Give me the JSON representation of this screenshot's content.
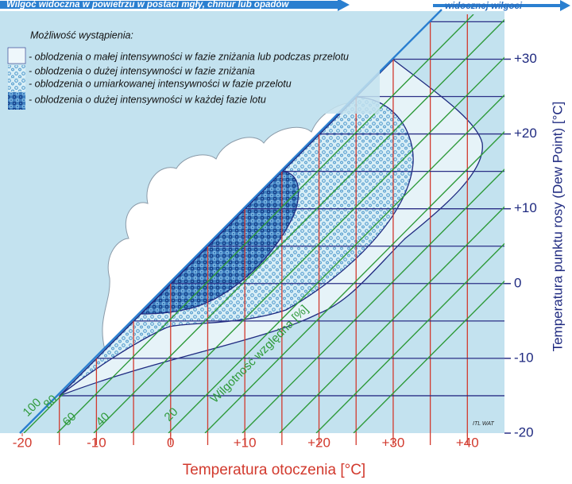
{
  "banner": {
    "left": "Wilgoć widoczna w powietrzu w postaci mgły, chmur lub opadów",
    "right": "widocznej wilgoci"
  },
  "chart_data": {
    "type": "icing-diagram",
    "legend_title": "Możliwość wystąpienia:",
    "legend": [
      "- oblodzenia o małej intensywności w fazie zniżania lub podczas przelotu",
      "- oblodzenia o dużej intensywności w fazie zniżania",
      "- oblodzenia o umiarkowanej intensywności w fazie przelotu",
      "- oblodzenia o dużej intensywności w każdej fazie lotu"
    ],
    "x_label": "Temperatura otoczenia [°C]",
    "y_label": "Temperatura punktu rosy (Dew Point) [°C]",
    "rh_label": "Wilgotność względna [%]",
    "rh_lines": [
      100,
      80,
      60,
      40,
      20
    ],
    "credit": "ITL WAT",
    "xlim": [
      -23,
      45
    ],
    "ylim": [
      -20,
      36
    ],
    "xticks": [
      -20,
      -10,
      0,
      {
        "value": 10,
        "label": "+10"
      },
      {
        "value": 20,
        "label": "+20"
      },
      {
        "value": 30,
        "label": "+30"
      },
      {
        "value": 40,
        "label": "+40"
      }
    ],
    "yticks": [
      -20,
      -10,
      0,
      {
        "value": 10,
        "label": "+10"
      },
      {
        "value": 20,
        "label": "+20"
      },
      {
        "value": 30,
        "label": "+30"
      }
    ],
    "x_grid": [
      -15,
      -10,
      -5,
      0,
      5,
      10,
      15,
      20,
      25,
      30,
      35,
      40
    ],
    "y_grid": [
      -15,
      -10,
      -5,
      0,
      5,
      10,
      15,
      20,
      25,
      30,
      35
    ],
    "colors": {
      "x_grid": "#d23a2e",
      "y_grid": "#2b2f86",
      "x_text": "#d23a2e",
      "y_text": "#1f2a80"
    }
  }
}
